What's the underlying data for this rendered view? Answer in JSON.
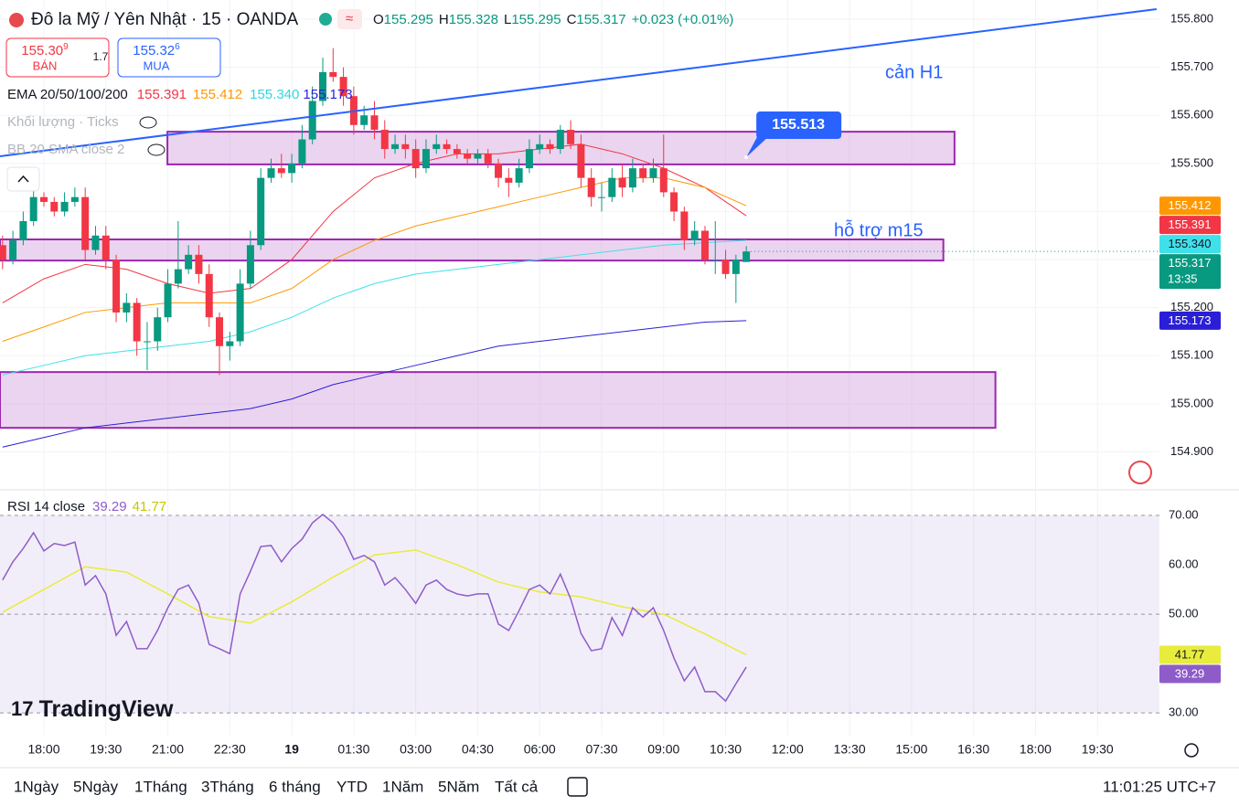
{
  "header": {
    "title": "Đô la Mỹ / Yên Nhật · 15 · OANDA",
    "ohlc": [
      {
        "key": "O",
        "value": "155.295"
      },
      {
        "key": "H",
        "value": "155.328"
      },
      {
        "key": "L",
        "value": "155.295"
      },
      {
        "key": "C",
        "value": "155.317"
      }
    ],
    "change": "+0.023 (+0.01%)"
  },
  "trade": {
    "sell_price": "155.30",
    "sell_pip": "9",
    "sell_label": "BÁN",
    "spread": "1.7",
    "buy_price": "155.32",
    "buy_pip": "6",
    "buy_label": "MUA"
  },
  "indicators": {
    "ema_title": "EMA 20/50/100/200",
    "ema_values": [
      "155.391",
      "155.412",
      "155.340",
      "155.173"
    ],
    "volume": "Khối lượng · Ticks",
    "bb": "BB 20 SMA close 2"
  },
  "logo": "TradingView",
  "chart_data": [
    {
      "type": "candlestick",
      "up_color": "#089981",
      "down_color": "#f23645",
      "xlim": [
        -1.062,
        27.0
      ],
      "ylim": [
        154.823,
        155.84
      ],
      "xticks": [
        {
          "value": 0,
          "label": "18:00"
        },
        {
          "value": 1.5,
          "label": "19:30"
        },
        {
          "value": 3,
          "label": "21:00"
        },
        {
          "value": 4.5,
          "label": "22:30"
        },
        {
          "value": 6,
          "label": "19"
        },
        {
          "value": 7.5,
          "label": "01:30"
        },
        {
          "value": 9,
          "label": "03:00"
        },
        {
          "value": 10.5,
          "label": "04:30"
        },
        {
          "value": 12,
          "label": "06:00"
        },
        {
          "value": 13.5,
          "label": "07:30"
        },
        {
          "value": 15,
          "label": "09:00"
        },
        {
          "value": 16.5,
          "label": "10:30"
        },
        {
          "value": 18,
          "label": "12:00"
        },
        {
          "value": 19.5,
          "label": "13:30"
        },
        {
          "value": 21,
          "label": "15:00"
        },
        {
          "value": 22.5,
          "label": "16:30"
        },
        {
          "value": 24,
          "label": "18:00"
        },
        {
          "value": 25.5,
          "label": "19:30"
        }
      ],
      "yticks": [
        {
          "value": 154.9,
          "label": "154.900"
        },
        {
          "value": 155.0,
          "label": "155.000"
        },
        {
          "value": 155.1,
          "label": "155.100"
        },
        {
          "value": 155.2,
          "label": "155.200"
        },
        {
          "value": 155.3,
          "label": "155.300"
        },
        {
          "value": 155.4,
          "label": "155.400"
        },
        {
          "value": 155.5,
          "label": "155.500"
        },
        {
          "value": 155.6,
          "label": "155.600"
        },
        {
          "value": 155.7,
          "label": "155.700"
        },
        {
          "value": 155.8,
          "label": "155.800"
        }
      ],
      "grid": true,
      "x": [
        -1,
        -0.75,
        -0.5,
        -0.25,
        0,
        0.25,
        0.5,
        0.75,
        1,
        1.25,
        1.5,
        1.75,
        2,
        2.25,
        2.5,
        2.75,
        3,
        3.25,
        3.5,
        3.75,
        4,
        4.25,
        4.5,
        4.75,
        5,
        5.25,
        5.5,
        5.75,
        6,
        6.25,
        6.5,
        6.75,
        7,
        7.25,
        7.5,
        7.75,
        8,
        8.25,
        8.5,
        8.75,
        9,
        9.25,
        9.5,
        9.75,
        10,
        10.25,
        10.5,
        10.75,
        11,
        11.25,
        11.5,
        11.75,
        12,
        12.25,
        12.5,
        12.75,
        13,
        13.25,
        13.5,
        13.75,
        14,
        14.25,
        14.5,
        14.75,
        15,
        15.25,
        15.5,
        15.75,
        16,
        16.25,
        16.5,
        16.75,
        17
      ],
      "open": [
        155.33,
        155.3,
        155.34,
        155.38,
        155.43,
        155.42,
        155.4,
        155.42,
        155.43,
        155.32,
        155.35,
        155.3,
        155.19,
        155.21,
        155.13,
        155.13,
        155.18,
        155.25,
        155.28,
        155.31,
        155.27,
        155.18,
        155.12,
        155.13,
        155.25,
        155.33,
        155.47,
        155.49,
        155.48,
        155.5,
        155.55,
        155.63,
        155.69,
        155.68,
        155.64,
        155.58,
        155.6,
        155.57,
        155.53,
        155.54,
        155.53,
        155.49,
        155.53,
        155.54,
        155.53,
        155.52,
        155.51,
        155.52,
        155.5,
        155.47,
        155.46,
        155.49,
        155.53,
        155.54,
        155.53,
        155.57,
        155.54,
        155.47,
        155.43,
        155.43,
        155.47,
        155.45,
        155.49,
        155.47,
        155.49,
        155.44,
        155.4,
        155.34,
        155.36,
        155.3,
        155.3,
        155.27,
        155.295
      ],
      "high": [
        155.35,
        155.36,
        155.4,
        155.45,
        155.44,
        155.43,
        155.44,
        155.45,
        155.45,
        155.37,
        155.37,
        155.31,
        155.23,
        155.22,
        155.17,
        155.2,
        155.28,
        155.38,
        155.33,
        155.33,
        155.29,
        155.19,
        155.15,
        155.28,
        155.36,
        155.49,
        155.51,
        155.52,
        155.52,
        155.58,
        155.66,
        155.72,
        155.74,
        155.7,
        155.66,
        155.62,
        155.63,
        155.59,
        155.56,
        155.56,
        155.55,
        155.55,
        155.56,
        155.55,
        155.54,
        155.53,
        155.53,
        155.53,
        155.51,
        155.49,
        155.51,
        155.55,
        155.56,
        155.55,
        155.58,
        155.59,
        155.56,
        155.49,
        155.46,
        155.49,
        155.5,
        155.51,
        155.5,
        155.51,
        155.56,
        155.45,
        155.41,
        155.38,
        155.37,
        155.38,
        155.32,
        155.31,
        155.328
      ],
      "low": [
        155.28,
        155.29,
        155.33,
        155.37,
        155.41,
        155.39,
        155.39,
        155.41,
        155.3,
        155.31,
        155.28,
        155.17,
        155.17,
        155.1,
        155.07,
        155.11,
        155.17,
        155.24,
        155.27,
        155.25,
        155.16,
        155.06,
        155.09,
        155.12,
        155.24,
        155.32,
        155.46,
        155.47,
        155.46,
        155.49,
        155.54,
        155.62,
        155.67,
        155.62,
        155.56,
        155.57,
        155.55,
        155.51,
        155.52,
        155.51,
        155.47,
        155.48,
        155.52,
        155.52,
        155.51,
        155.5,
        155.5,
        155.49,
        155.45,
        155.43,
        155.45,
        155.48,
        155.52,
        155.52,
        155.52,
        155.53,
        155.45,
        155.41,
        155.4,
        155.42,
        155.43,
        155.44,
        155.46,
        155.46,
        155.43,
        155.38,
        155.32,
        155.33,
        155.29,
        155.27,
        155.26,
        155.21,
        155.295
      ],
      "close": [
        155.3,
        155.34,
        155.38,
        155.43,
        155.42,
        155.4,
        155.42,
        155.43,
        155.32,
        155.35,
        155.3,
        155.19,
        155.21,
        155.13,
        155.13,
        155.18,
        155.25,
        155.28,
        155.31,
        155.27,
        155.18,
        155.12,
        155.13,
        155.25,
        155.33,
        155.47,
        155.49,
        155.48,
        155.5,
        155.55,
        155.63,
        155.69,
        155.68,
        155.64,
        155.58,
        155.6,
        155.57,
        155.53,
        155.54,
        155.53,
        155.49,
        155.53,
        155.54,
        155.53,
        155.52,
        155.51,
        155.52,
        155.5,
        155.47,
        155.46,
        155.49,
        155.53,
        155.54,
        155.53,
        155.57,
        155.54,
        155.47,
        155.43,
        155.43,
        155.47,
        155.45,
        155.49,
        155.47,
        155.49,
        155.44,
        155.4,
        155.34,
        155.36,
        155.3,
        155.3,
        155.27,
        155.3,
        155.317
      ],
      "countdown": "13:35",
      "ema_lines": [
        {
          "color": "#f23645",
          "x": [
            -1,
            0,
            1,
            2,
            3,
            4,
            5,
            6,
            7,
            8,
            9,
            10,
            11,
            12,
            13,
            14,
            15,
            16,
            17
          ],
          "values": [
            155.21,
            155.26,
            155.29,
            155.28,
            155.25,
            155.23,
            155.24,
            155.3,
            155.4,
            155.47,
            155.5,
            155.52,
            155.52,
            155.53,
            155.54,
            155.52,
            155.49,
            155.45,
            155.391
          ]
        },
        {
          "color": "#ff9800",
          "x": [
            -1,
            0,
            1,
            2,
            3,
            4,
            5,
            6,
            7,
            8,
            9,
            10,
            11,
            12,
            13,
            14,
            15,
            16,
            17
          ],
          "values": [
            155.13,
            155.16,
            155.19,
            155.2,
            155.21,
            155.21,
            155.21,
            155.24,
            155.3,
            155.34,
            155.37,
            155.39,
            155.41,
            155.43,
            155.45,
            155.47,
            155.47,
            155.45,
            155.412
          ]
        },
        {
          "color": "#3fe0ea",
          "x": [
            -1,
            0,
            1,
            2,
            3,
            4,
            5,
            6,
            7,
            8,
            9,
            10,
            11,
            12,
            13,
            14,
            15,
            16,
            17
          ],
          "values": [
            155.06,
            155.08,
            155.1,
            155.11,
            155.12,
            155.13,
            155.15,
            155.18,
            155.22,
            155.25,
            155.27,
            155.28,
            155.29,
            155.3,
            155.31,
            155.32,
            155.33,
            155.335,
            155.34
          ]
        },
        {
          "color": "#2a1fd6",
          "x": [
            -1,
            0,
            1,
            2,
            3,
            4,
            5,
            6,
            7,
            8,
            9,
            10,
            11,
            12,
            13,
            14,
            15,
            16,
            17
          ],
          "values": [
            154.91,
            154.93,
            154.95,
            154.96,
            154.97,
            154.98,
            154.99,
            155.01,
            155.04,
            155.06,
            155.08,
            155.1,
            155.12,
            155.13,
            155.14,
            155.15,
            155.16,
            155.17,
            155.173
          ]
        }
      ],
      "trendline": {
        "color": "#2962ff",
        "x": [
          -1.062,
          26.93
        ],
        "values": [
          155.515,
          155.821
        ]
      },
      "zones": [
        {
          "xlim": [
            2.99,
            22.04
          ],
          "ylim": [
            155.498,
            155.566
          ]
        },
        {
          "xlim": [
            -1.062,
            21.77
          ],
          "ylim": [
            155.298,
            155.342
          ]
        },
        {
          "xlim": [
            -1.062,
            23.03
          ],
          "ylim": [
            154.95,
            155.066
          ]
        }
      ],
      "callout": 155.513,
      "annotations": [
        {
          "text": "cản H1"
        },
        {
          "text": "hỗ trợ m15"
        }
      ]
    },
    {
      "type": "line",
      "title": "RSI 14 close",
      "ylim": [
        25.4,
        75
      ],
      "yticks": [
        {
          "value": 70,
          "label": "70.00"
        },
        {
          "value": 60,
          "label": "60.00"
        },
        {
          "value": 50,
          "label": "50.00"
        },
        {
          "value": 30,
          "label": "30.00"
        }
      ],
      "band": [
        30,
        70
      ],
      "levels": [
        30,
        50,
        70
      ],
      "series": [
        {
          "color": "#8e5cc9",
          "values": [
            56.9,
            60.6,
            63.3,
            66.5,
            62.8,
            64.3,
            63.9,
            64.6,
            55.9,
            57.8,
            54.1,
            45.7,
            48.5,
            43.0,
            43.0,
            46.7,
            51.3,
            55.0,
            55.9,
            52.2,
            43.9,
            43.0,
            42.0,
            54.1,
            58.7,
            63.7,
            63.9,
            60.6,
            63.3,
            65.2,
            68.5,
            70.2,
            68.5,
            65.6,
            61.1,
            61.9,
            60.6,
            55.9,
            57.4,
            55.0,
            52.2,
            55.9,
            56.9,
            55.0,
            54.1,
            53.7,
            54.1,
            54.1,
            48.0,
            46.7,
            50.7,
            55.0,
            55.9,
            54.1,
            58.1,
            53.1,
            46.1,
            42.6,
            43.0,
            49.3,
            45.7,
            51.3,
            49.4,
            51.3,
            46.7,
            41.1,
            36.5,
            39.3,
            34.3,
            34.3,
            32.4,
            35.9,
            39.29
          ]
        },
        {
          "color": "#e8ec3c",
          "x": [
            -1,
            0,
            1,
            2,
            3,
            4,
            5,
            6,
            7,
            8,
            9,
            10,
            11,
            12,
            13,
            14,
            15,
            16,
            17
          ],
          "values": [
            50.4,
            55.0,
            59.6,
            58.5,
            54.1,
            49.5,
            48.2,
            52.5,
            57.5,
            62.0,
            63.0,
            60.0,
            56.5,
            54.5,
            53.5,
            51.5,
            50.0,
            46.0,
            41.77
          ]
        }
      ]
    }
  ],
  "toolbar": {
    "periods": [
      "1Ngày",
      "5Ngày",
      "1Tháng",
      "3Tháng",
      "6 tháng",
      "YTD",
      "1Năm",
      "5Năm",
      "Tất cả"
    ],
    "clock": "11:01:25 UTC+7"
  }
}
